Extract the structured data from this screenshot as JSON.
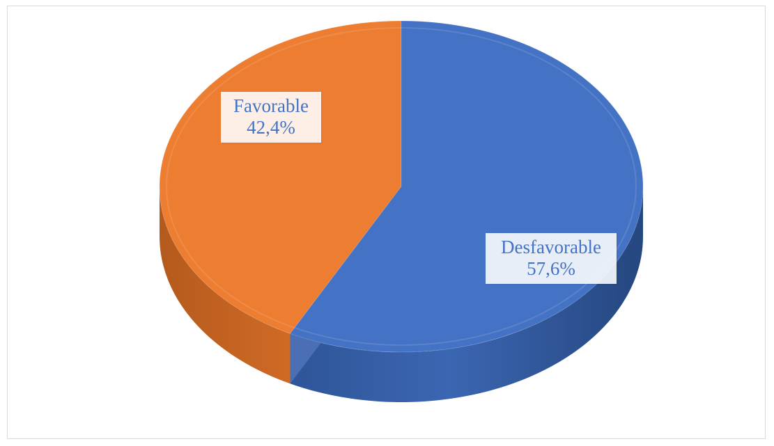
{
  "chart_data": {
    "type": "pie",
    "title": "",
    "categories": [
      "Favorable",
      "Desfavorable"
    ],
    "values": [
      42.4,
      57.6
    ],
    "value_labels": [
      "42,4%",
      "57,6%"
    ],
    "colors": [
      "#ed7d31",
      "#4472c4"
    ],
    "style": "3d",
    "legend": "none"
  }
}
